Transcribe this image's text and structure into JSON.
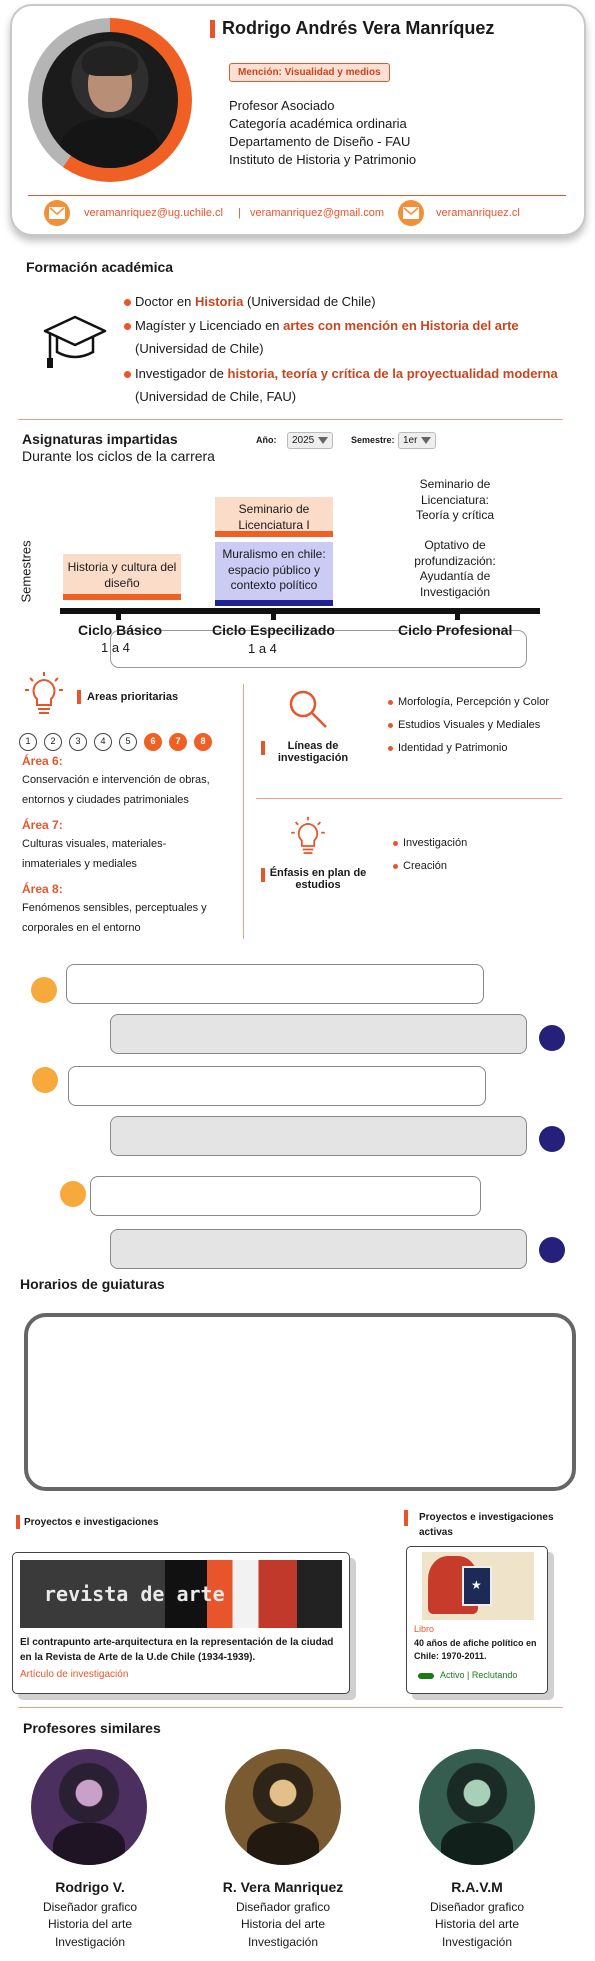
{
  "profile": {
    "name": "Rodrigo Andrés Vera Manríquez",
    "mention": "Mención: Visualidad y medios",
    "roles": [
      "Profesor Asociado",
      "Categoría académica ordinaria",
      "Departamento de Diseño - FAU",
      "Instituto de Historia y Patrimonio"
    ],
    "contacts": {
      "email1": "veramanriquez@ug.uchile.cl",
      "separator": "|",
      "email2": "veramanriquez@gmail.com",
      "website": "veramanriquez.cl"
    }
  },
  "formacion": {
    "title": "Formación académica",
    "items": [
      {
        "pre": "Doctor en ",
        "hl": "Historia",
        "post": "  (Universidad de Chile)",
        "line2": ""
      },
      {
        "pre": "Magíster y Licenciado en ",
        "hl": "artes con mención en Historia del arte",
        "post": "",
        "line2": "(Universidad de Chile)"
      },
      {
        "pre": "Investigador de ",
        "hl": "historia, teoría y crítica de la proyectualidad moderna",
        "post": "",
        "line2": "(Universidad de Chile, FAU)"
      }
    ]
  },
  "asignaturas": {
    "title": "Asignaturas impartidas",
    "subtitle": "Durante los ciclos de la carrera",
    "year_label": "Año:",
    "year_value": "2025",
    "semester_label": "Semestre:",
    "semester_value": "1er",
    "axis_label": "Semestres",
    "subjects": {
      "historia": "Historia y cultura del diseño",
      "seminario": "Seminario de Licenciatura I",
      "muralismo": "Muralismo en chile: espacio público y contexto político",
      "seminario_lic": "Seminario de Licenciatura: Teoría y crítica",
      "optativo": "Optativo de profundización: Ayudantía de Investigación"
    },
    "ciclos": [
      {
        "name": "Ciclo Básico",
        "range": "1 a 4"
      },
      {
        "name": "Ciclo Especilizado",
        "range": "1 a 4"
      },
      {
        "name": "Ciclo Profesional",
        "range": ""
      }
    ]
  },
  "areas": {
    "title": "Areas prioritarias",
    "numbers": [
      "1",
      "2",
      "3",
      "4",
      "5",
      "6",
      "7",
      "8"
    ],
    "active": [
      "6",
      "7",
      "8"
    ],
    "items": [
      {
        "label": "Área 6:",
        "text": "Conservación e intervención de obras, entornos y ciudades patrimoniales"
      },
      {
        "label": "Área 7:",
        "text": "Culturas visuales, materiales-inmateriales y mediales"
      },
      {
        "label": "Área 8:",
        "text": "Fenómenos sensibles, perceptuales y corporales en el entorno"
      }
    ]
  },
  "lineas": {
    "title": "Líneas de investigación",
    "items": [
      "Morfología, Percepción y Color",
      "Estudios Visuales y Mediales",
      "Identidad y Patrimonio"
    ]
  },
  "enfasis": {
    "title": "Énfasis en plan de estudios",
    "items": [
      "Investigación",
      "Creación"
    ]
  },
  "horarios": {
    "title": "Horarios de guiaturas"
  },
  "proyectos": {
    "title": "Proyectos e investigaciones",
    "card_image_text": "revista de arte",
    "card_title": "El contrapunto arte-arquitectura en la representación de la ciudad en la Revista de Arte de la U.de Chile (1934-1939).",
    "card_tag": "Artículo de investigación"
  },
  "proyectos_activos": {
    "title": "Proyectos e investigaciones activas",
    "tag": "Libro",
    "book_title": "40 años de afiche político en Chile: 1970-2011.",
    "status": "Activo | Reclutando"
  },
  "similares": {
    "title": "Profesores similares",
    "items": [
      {
        "name": "Rodrigo V.",
        "lines": [
          "Diseñador grafico",
          "Historia del arte",
          "Investigación"
        ],
        "tint": "#5a3b6e"
      },
      {
        "name": "R. Vera Manriquez",
        "lines": [
          "Diseñador grafico",
          "Historia del arte",
          "Investigación"
        ],
        "tint": "#8a6a3a"
      },
      {
        "name": "R.A.V.M",
        "lines": [
          "Diseñador grafico",
          "Historia del arte",
          "Investigación"
        ],
        "tint": "#3d6b5e"
      }
    ]
  },
  "colors": {
    "accent": "#e8552a",
    "navy": "#25207a",
    "amber": "#f7a93c"
  }
}
